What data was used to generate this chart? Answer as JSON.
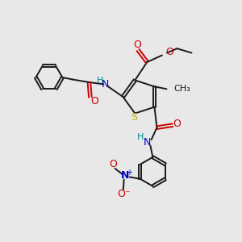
{
  "bg_color": "#e8e8e8",
  "bond_color": "#1a1a1a",
  "sulfur_color": "#b8b800",
  "oxygen_color": "#cc0000",
  "nitrogen_color": "#0000cc",
  "hydrogen_color": "#008888",
  "figsize": [
    3.0,
    3.0
  ],
  "dpi": 100,
  "xlim": [
    0,
    10
  ],
  "ylim": [
    0,
    10
  ]
}
